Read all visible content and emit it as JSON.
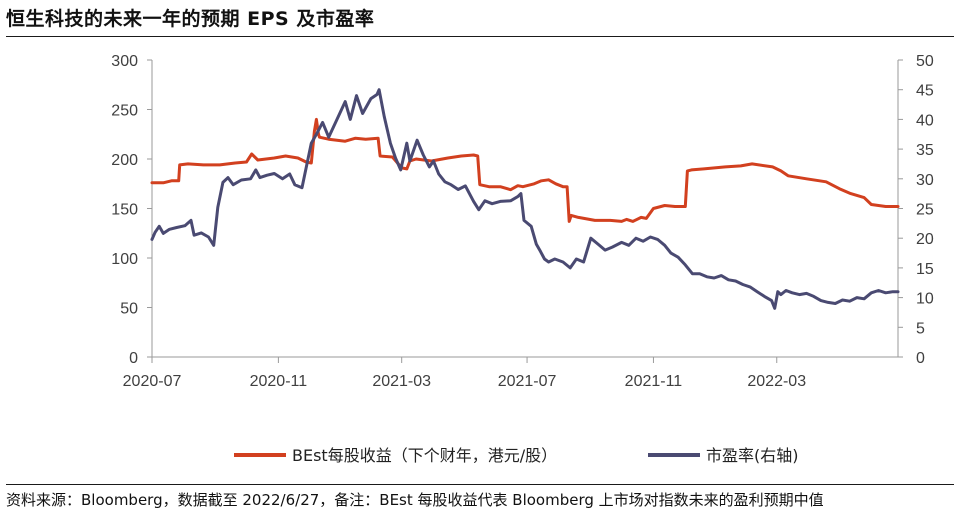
{
  "title": "恒生科技的未来一年的预期 EPS 及市盈率",
  "source": "资料来源：Bloomberg，数据截至 2022/6/27，备注：BEst 每股收益代表 Bloomberg 上市场对指数未来的盈利预期中值",
  "colors": {
    "eps": "#d2401f",
    "pe": "#4a4a72",
    "axis": "#9a9a9a"
  },
  "chart_data": {
    "type": "line",
    "x_range": [
      "2020-07-01",
      "2022-06-27"
    ],
    "x_ticks": [
      {
        "label": "2020-07",
        "date": "2020-07-01"
      },
      {
        "label": "2020-11",
        "date": "2020-11-01"
      },
      {
        "label": "2021-03",
        "date": "2021-03-01"
      },
      {
        "label": "2021-07",
        "date": "2021-07-01"
      },
      {
        "label": "2021-11",
        "date": "2021-11-01"
      },
      {
        "label": "2022-03",
        "date": "2022-03-01"
      }
    ],
    "y_left": {
      "ylim": [
        0,
        300
      ],
      "ticks": [
        "0",
        "50",
        "100",
        "150",
        "200",
        "250",
        "300"
      ]
    },
    "y_right": {
      "ylim": [
        0,
        50
      ],
      "ticks": [
        "0",
        "5",
        "10",
        "15",
        "20",
        "25",
        "30",
        "35",
        "40",
        "45",
        "50"
      ]
    },
    "grid": false,
    "legend_position": "bottom",
    "series": [
      {
        "name": "BEst每股收益（下个财年，港元/股）",
        "axis": "left",
        "points": [
          [
            "2020-07-01",
            176
          ],
          [
            "2020-07-12",
            176
          ],
          [
            "2020-07-20",
            178
          ],
          [
            "2020-07-27",
            178
          ],
          [
            "2020-07-28",
            194
          ],
          [
            "2020-08-05",
            195
          ],
          [
            "2020-08-20",
            194
          ],
          [
            "2020-09-05",
            194
          ],
          [
            "2020-09-20",
            196
          ],
          [
            "2020-10-01",
            197
          ],
          [
            "2020-10-06",
            205
          ],
          [
            "2020-10-12",
            199
          ],
          [
            "2020-10-20",
            200
          ],
          [
            "2020-10-28",
            201
          ],
          [
            "2020-11-08",
            203
          ],
          [
            "2020-11-20",
            201
          ],
          [
            "2020-11-28",
            197
          ],
          [
            "2020-12-03",
            196
          ],
          [
            "2020-12-06",
            228
          ],
          [
            "2020-12-08",
            240
          ],
          [
            "2020-12-10",
            225
          ],
          [
            "2020-12-11",
            222
          ],
          [
            "2020-12-20",
            220
          ],
          [
            "2021-01-05",
            218
          ],
          [
            "2021-01-15",
            221
          ],
          [
            "2021-01-25",
            220
          ],
          [
            "2021-02-06",
            221
          ],
          [
            "2021-02-08",
            203
          ],
          [
            "2021-02-20",
            202
          ],
          [
            "2021-03-01",
            191
          ],
          [
            "2021-03-06",
            190
          ],
          [
            "2021-03-09",
            198
          ],
          [
            "2021-03-15",
            200
          ],
          [
            "2021-03-30",
            198
          ],
          [
            "2021-04-15",
            201
          ],
          [
            "2021-04-28",
            203
          ],
          [
            "2021-05-10",
            204
          ],
          [
            "2021-05-14",
            203
          ],
          [
            "2021-05-16",
            174
          ],
          [
            "2021-05-25",
            172
          ],
          [
            "2021-06-05",
            172
          ],
          [
            "2021-06-15",
            169
          ],
          [
            "2021-06-22",
            173
          ],
          [
            "2021-06-27",
            172
          ],
          [
            "2021-07-08",
            175
          ],
          [
            "2021-07-15",
            178
          ],
          [
            "2021-07-22",
            179
          ],
          [
            "2021-07-29",
            175
          ],
          [
            "2021-08-05",
            172
          ],
          [
            "2021-08-09",
            172
          ],
          [
            "2021-08-11",
            137
          ],
          [
            "2021-08-13",
            143
          ],
          [
            "2021-08-20",
            141
          ],
          [
            "2021-09-05",
            138
          ],
          [
            "2021-09-20",
            138
          ],
          [
            "2021-10-01",
            137
          ],
          [
            "2021-10-06",
            139
          ],
          [
            "2021-10-12",
            137
          ],
          [
            "2021-10-20",
            141
          ],
          [
            "2021-10-25",
            140
          ],
          [
            "2021-11-01",
            150
          ],
          [
            "2021-11-12",
            153
          ],
          [
            "2021-11-22",
            152
          ],
          [
            "2021-12-02",
            152
          ],
          [
            "2021-12-04",
            188
          ],
          [
            "2021-12-08",
            189
          ],
          [
            "2021-12-20",
            190
          ],
          [
            "2022-01-10",
            192
          ],
          [
            "2022-01-25",
            193
          ],
          [
            "2022-02-05",
            195
          ],
          [
            "2022-02-25",
            192
          ],
          [
            "2022-03-05",
            188
          ],
          [
            "2022-03-12",
            183
          ],
          [
            "2022-03-30",
            180
          ],
          [
            "2022-04-18",
            177
          ],
          [
            "2022-05-01",
            170
          ],
          [
            "2022-05-12",
            165
          ],
          [
            "2022-05-25",
            161
          ],
          [
            "2022-06-01",
            154
          ],
          [
            "2022-06-15",
            152
          ],
          [
            "2022-06-27",
            152
          ]
        ]
      },
      {
        "name": "市盈率(右轴)",
        "axis": "right",
        "points": [
          [
            "2020-07-01",
            19.8
          ],
          [
            "2020-07-04",
            21.0
          ],
          [
            "2020-07-08",
            22.0
          ],
          [
            "2020-07-12",
            20.8
          ],
          [
            "2020-07-18",
            21.5
          ],
          [
            "2020-07-25",
            21.8
          ],
          [
            "2020-08-02",
            22.1
          ],
          [
            "2020-08-08",
            23.0
          ],
          [
            "2020-08-11",
            20.5
          ],
          [
            "2020-08-18",
            20.9
          ],
          [
            "2020-08-25",
            20.2
          ],
          [
            "2020-08-30",
            18.8
          ],
          [
            "2020-09-03",
            25.2
          ],
          [
            "2020-09-08",
            29.4
          ],
          [
            "2020-09-13",
            30.2
          ],
          [
            "2020-09-18",
            29.0
          ],
          [
            "2020-09-26",
            29.8
          ],
          [
            "2020-10-05",
            30.0
          ],
          [
            "2020-10-10",
            31.5
          ],
          [
            "2020-10-14",
            30.2
          ],
          [
            "2020-10-21",
            30.6
          ],
          [
            "2020-10-28",
            30.9
          ],
          [
            "2020-11-05",
            30.0
          ],
          [
            "2020-11-12",
            30.8
          ],
          [
            "2020-11-17",
            29.0
          ],
          [
            "2020-11-24",
            28.5
          ],
          [
            "2020-12-03",
            36.0
          ],
          [
            "2020-12-08",
            37.5
          ],
          [
            "2020-12-14",
            39.5
          ],
          [
            "2020-12-20",
            37.0
          ],
          [
            "2020-12-28",
            40.0
          ],
          [
            "2021-01-05",
            43.0
          ],
          [
            "2021-01-10",
            40.0
          ],
          [
            "2021-01-16",
            44.0
          ],
          [
            "2021-01-22",
            41.0
          ],
          [
            "2021-01-30",
            43.5
          ],
          [
            "2021-02-05",
            44.2
          ],
          [
            "2021-02-07",
            45.0
          ],
          [
            "2021-02-12",
            40.5
          ],
          [
            "2021-02-18",
            36.0
          ],
          [
            "2021-02-23",
            33.5
          ],
          [
            "2021-02-28",
            31.5
          ],
          [
            "2021-03-06",
            36.0
          ],
          [
            "2021-03-09",
            33.0
          ],
          [
            "2021-03-16",
            36.5
          ],
          [
            "2021-03-22",
            34.0
          ],
          [
            "2021-03-28",
            32.0
          ],
          [
            "2021-04-01",
            33.0
          ],
          [
            "2021-04-06",
            30.8
          ],
          [
            "2021-04-12",
            29.5
          ],
          [
            "2021-04-18",
            29.0
          ],
          [
            "2021-04-25",
            28.2
          ],
          [
            "2021-05-02",
            28.8
          ],
          [
            "2021-05-10",
            26.2
          ],
          [
            "2021-05-15",
            24.8
          ],
          [
            "2021-05-21",
            26.3
          ],
          [
            "2021-05-28",
            25.8
          ],
          [
            "2021-06-05",
            26.2
          ],
          [
            "2021-06-15",
            26.3
          ],
          [
            "2021-06-22",
            27.0
          ],
          [
            "2021-06-25",
            27.5
          ],
          [
            "2021-06-28",
            23.0
          ],
          [
            "2021-07-05",
            22.0
          ],
          [
            "2021-07-10",
            19.0
          ],
          [
            "2021-07-14",
            17.8
          ],
          [
            "2021-07-18",
            16.5
          ],
          [
            "2021-07-22",
            16.0
          ],
          [
            "2021-07-28",
            16.5
          ],
          [
            "2021-08-05",
            16.0
          ],
          [
            "2021-08-12",
            15.0
          ],
          [
            "2021-08-18",
            16.5
          ],
          [
            "2021-08-25",
            16.0
          ],
          [
            "2021-09-01",
            20.0
          ],
          [
            "2021-09-08",
            19.0
          ],
          [
            "2021-09-15",
            18.0
          ],
          [
            "2021-09-22",
            18.5
          ],
          [
            "2021-10-01",
            19.3
          ],
          [
            "2021-10-08",
            18.8
          ],
          [
            "2021-10-15",
            20.0
          ],
          [
            "2021-10-22",
            19.5
          ],
          [
            "2021-10-29",
            20.2
          ],
          [
            "2021-11-05",
            19.8
          ],
          [
            "2021-11-12",
            18.8
          ],
          [
            "2021-11-18",
            17.5
          ],
          [
            "2021-11-25",
            16.8
          ],
          [
            "2021-12-02",
            15.5
          ],
          [
            "2021-12-09",
            14.0
          ],
          [
            "2021-12-16",
            14.0
          ],
          [
            "2021-12-23",
            13.5
          ],
          [
            "2021-12-30",
            13.3
          ],
          [
            "2022-01-06",
            13.7
          ],
          [
            "2022-01-13",
            13.0
          ],
          [
            "2022-01-20",
            12.8
          ],
          [
            "2022-01-27",
            12.2
          ],
          [
            "2022-02-03",
            11.8
          ],
          [
            "2022-02-10",
            11.0
          ],
          [
            "2022-02-17",
            10.2
          ],
          [
            "2022-02-24",
            9.5
          ],
          [
            "2022-02-27",
            8.2
          ],
          [
            "2022-03-02",
            11.0
          ],
          [
            "2022-03-05",
            10.5
          ],
          [
            "2022-03-10",
            11.2
          ],
          [
            "2022-03-16",
            10.8
          ],
          [
            "2022-03-23",
            10.5
          ],
          [
            "2022-03-30",
            10.7
          ],
          [
            "2022-04-06",
            10.2
          ],
          [
            "2022-04-13",
            9.5
          ],
          [
            "2022-04-20",
            9.2
          ],
          [
            "2022-04-27",
            9.0
          ],
          [
            "2022-05-04",
            9.6
          ],
          [
            "2022-05-11",
            9.4
          ],
          [
            "2022-05-18",
            10.0
          ],
          [
            "2022-05-25",
            9.8
          ],
          [
            "2022-06-01",
            10.8
          ],
          [
            "2022-06-08",
            11.2
          ],
          [
            "2022-06-15",
            10.8
          ],
          [
            "2022-06-22",
            11.0
          ],
          [
            "2022-06-27",
            11.0
          ]
        ]
      }
    ]
  }
}
